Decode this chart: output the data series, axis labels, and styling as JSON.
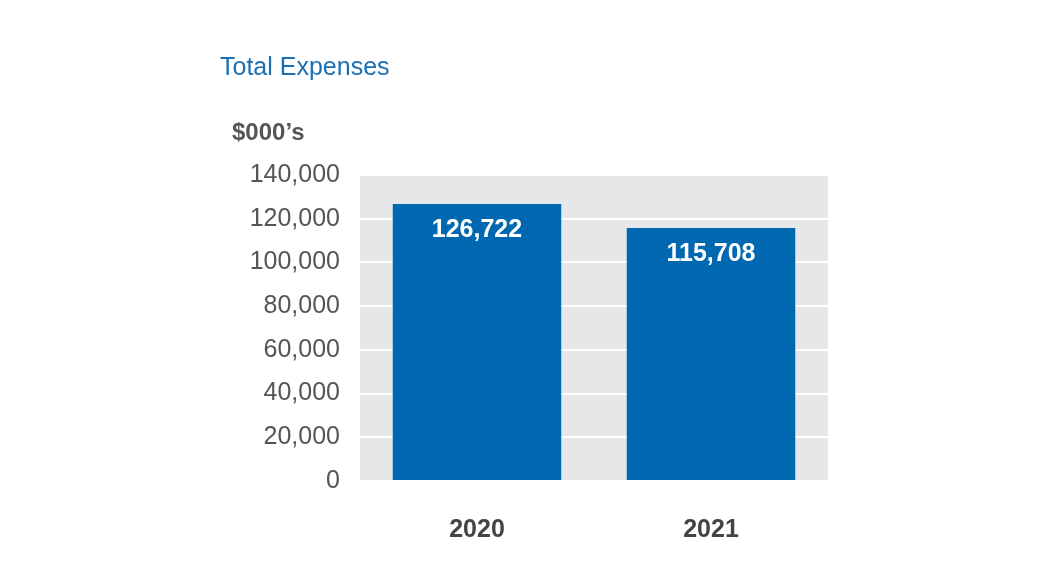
{
  "chart_data": {
    "type": "bar",
    "title": "Total Expenses",
    "ylabel": "$000’s",
    "categories": [
      "2020",
      "2021"
    ],
    "values": [
      126722,
      115708
    ],
    "value_labels": [
      "126,722",
      "115,708"
    ],
    "color": "#0067b1",
    "ylim": [
      0,
      140000
    ],
    "yticks": [
      0,
      {
        "value": 20000,
        "label": "20,000"
      },
      {
        "value": 40000,
        "label": "40,000"
      },
      {
        "value": 60000,
        "label": "60,000"
      },
      {
        "value": 80000,
        "label": "80,000"
      },
      {
        "value": 100000,
        "label": "100,000"
      },
      {
        "value": 120000,
        "label": "120,000"
      },
      {
        "value": 140000,
        "label": "140,000"
      }
    ],
    "grid": "y",
    "legend": false
  }
}
